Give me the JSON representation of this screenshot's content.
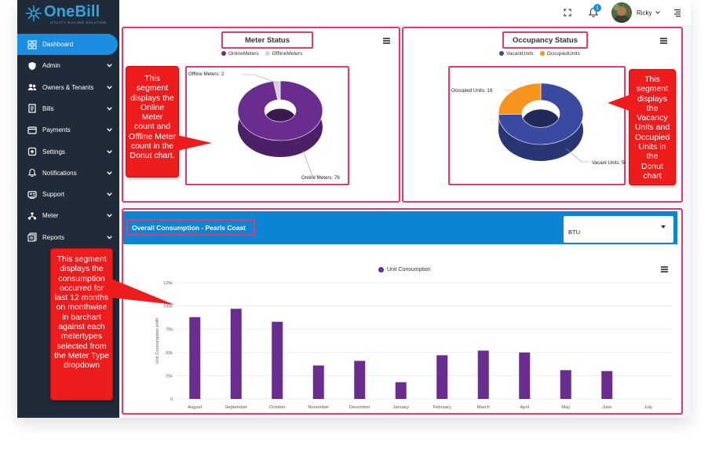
{
  "brand": {
    "logo_text": "OneBill",
    "logo_sub": "UTILITY BILLING SOLUTION"
  },
  "topbar": {
    "user_name": "Ricky",
    "notification_count": "1"
  },
  "sidebar": {
    "items": [
      {
        "label": "Dashboard",
        "icon": "dashboard-icon",
        "active": true,
        "has_chevron": false
      },
      {
        "label": "Admin",
        "icon": "shield-icon",
        "has_chevron": true
      },
      {
        "label": "Owners & Tenants",
        "icon": "users-icon",
        "has_chevron": true
      },
      {
        "label": "Bills",
        "icon": "bill-icon",
        "has_chevron": true
      },
      {
        "label": "Payments",
        "icon": "card-icon",
        "has_chevron": true
      },
      {
        "label": "Settings",
        "icon": "settings-icon",
        "has_chevron": true
      },
      {
        "label": "Notifications",
        "icon": "bell-icon",
        "has_chevron": true
      },
      {
        "label": "Support",
        "icon": "support-icon",
        "has_chevron": true
      },
      {
        "label": "Meter",
        "icon": "meter-icon",
        "has_chevron": true
      },
      {
        "label": "Reports",
        "icon": "reports-icon",
        "has_chevron": true
      }
    ]
  },
  "meter_status": {
    "title": "Meter Status",
    "legend": [
      "OnlineMeters",
      "OfflineMeters"
    ],
    "offline_label": "Offline Meters: 2",
    "online_label": "Online Meters: 76",
    "callout": [
      "This",
      "segment",
      "displays the",
      "Online Meter",
      "count and",
      "Offline Meter",
      "count in the",
      "Donut chart."
    ]
  },
  "occupancy_status": {
    "title": "Occupancy Status",
    "legend": [
      "VacantUnits",
      "OccupiedUnits"
    ],
    "occupied_label": "Occupied Units: 19",
    "vacant_label": "Vacant Units: 56",
    "callout": [
      "This",
      "segment",
      "displays",
      "the",
      "Vacancy",
      "Units and",
      "Occupied",
      "Units in the",
      "Donut chart"
    ]
  },
  "consumption": {
    "title": "Overall Consumption - Pearls Coast",
    "meter_type": "BTU",
    "legend": "Unit Consumption",
    "callout": [
      "This segment",
      "displays the",
      "consumption",
      "occurred for",
      "last 12 months",
      "on monthwise",
      "in barchart",
      "against each",
      "metertypes",
      "selected from",
      "the Meter Type",
      "dropdown"
    ]
  },
  "colors": {
    "online": "#6a2d8f",
    "offline": "#d9d0e6",
    "vacant": "#3b4aa0",
    "occupied": "#f7941d",
    "bar": "#6a2d8f",
    "accent": "#1b8ee2",
    "highlight": "#e23a6b",
    "callout": "#ee1c1c"
  },
  "chart_data": [
    {
      "type": "pie",
      "donut": true,
      "title": "Meter Status",
      "labels": [
        "OnlineMeters",
        "OfflineMeters"
      ],
      "values": [
        76,
        2
      ]
    },
    {
      "type": "pie",
      "donut": true,
      "title": "Occupancy Status",
      "labels": [
        "VacantUnits",
        "OccupiedUnits"
      ],
      "values": [
        56,
        19
      ]
    },
    {
      "type": "bar",
      "categories": [
        "August",
        "September",
        "October",
        "November",
        "December",
        "January",
        "February",
        "March",
        "April",
        "May",
        "June",
        "July"
      ],
      "series": [
        {
          "name": "Unit Consumption",
          "values": [
            88000,
            97000,
            83000,
            36000,
            41000,
            18000,
            47000,
            52000,
            50000,
            31000,
            30000,
            0
          ]
        }
      ],
      "ylabel": "Unit Consumption kWh",
      "yticks": [
        "0",
        "25k",
        "50k",
        "75k",
        "100k",
        "125k"
      ],
      "ylim": [
        0,
        125000
      ],
      "grid": true,
      "legend": "top-center"
    }
  ]
}
